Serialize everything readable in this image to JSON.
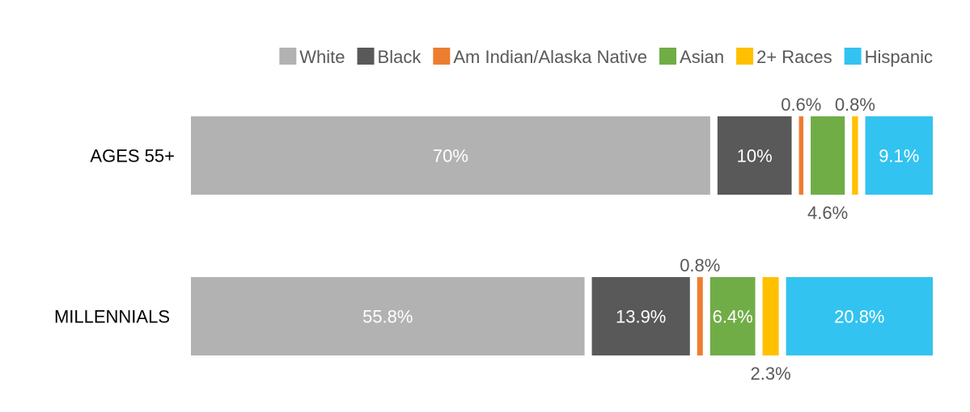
{
  "chart_data": {
    "type": "bar",
    "orientation": "horizontal",
    "stacked": true,
    "title": "",
    "xlabel": "",
    "ylabel": "",
    "xlim": [
      0,
      100
    ],
    "grid": false,
    "legend_position": "top-right",
    "categories": [
      "AGES 55+",
      "MILLENNIALS"
    ],
    "series": [
      {
        "name": "White",
        "color": "#B2B2B2",
        "values": [
          70,
          55.8
        ],
        "labels": [
          "70%",
          "55.8%"
        ]
      },
      {
        "name": "Black",
        "color": "#595959",
        "values": [
          10,
          13.9
        ],
        "labels": [
          "10%",
          "13.9%"
        ]
      },
      {
        "name": "Am Indian/Alaska Native",
        "color": "#ED7D31",
        "values": [
          0.6,
          0.8
        ],
        "labels": [
          "0.6%",
          "0.8%"
        ]
      },
      {
        "name": "Asian",
        "color": "#70AD47",
        "values": [
          4.6,
          6.4
        ],
        "labels": [
          "4.6%",
          "6.4%"
        ]
      },
      {
        "name": "2+ Races",
        "color": "#FFC000",
        "values": [
          0.8,
          2.3
        ],
        "labels": [
          "0.8%",
          "2.3%"
        ]
      },
      {
        "name": "Hispanic",
        "color": "#33C3F0",
        "values": [
          9.1,
          20.8
        ],
        "labels": [
          "9.1%",
          "20.8%"
        ]
      }
    ]
  }
}
